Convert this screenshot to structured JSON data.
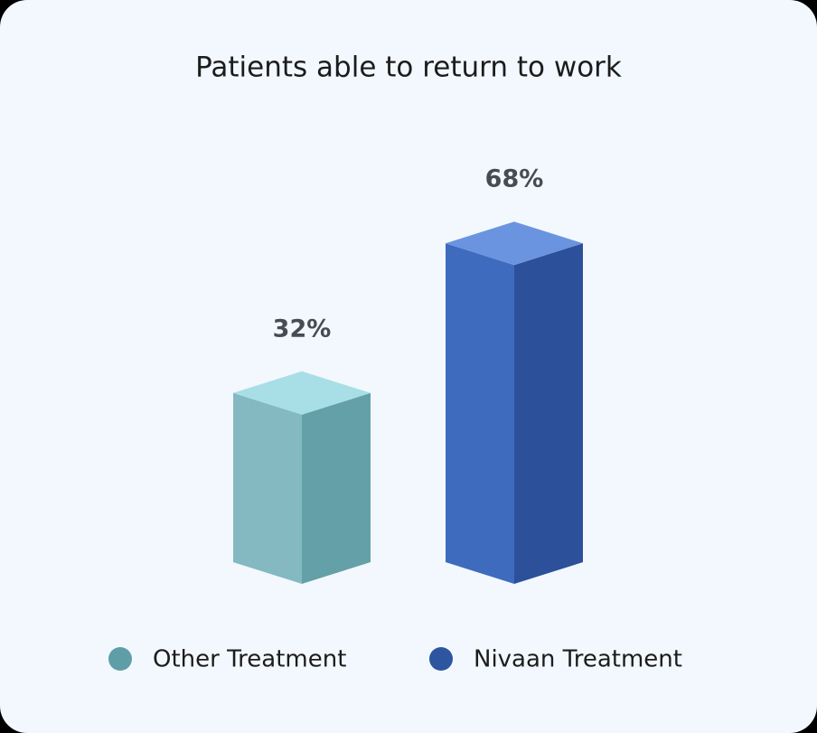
{
  "chart_data": {
    "type": "bar3d",
    "title": "Patients able to return to work",
    "series": [
      {
        "name": "Other Treatment",
        "color": "#5f9ea6",
        "values": [
          32
        ],
        "value_labels": [
          "32%"
        ]
      },
      {
        "name": "Nivaan Treatment",
        "color": "#2d55a0",
        "values": [
          68
        ],
        "value_labels": [
          "68%"
        ]
      }
    ]
  }
}
